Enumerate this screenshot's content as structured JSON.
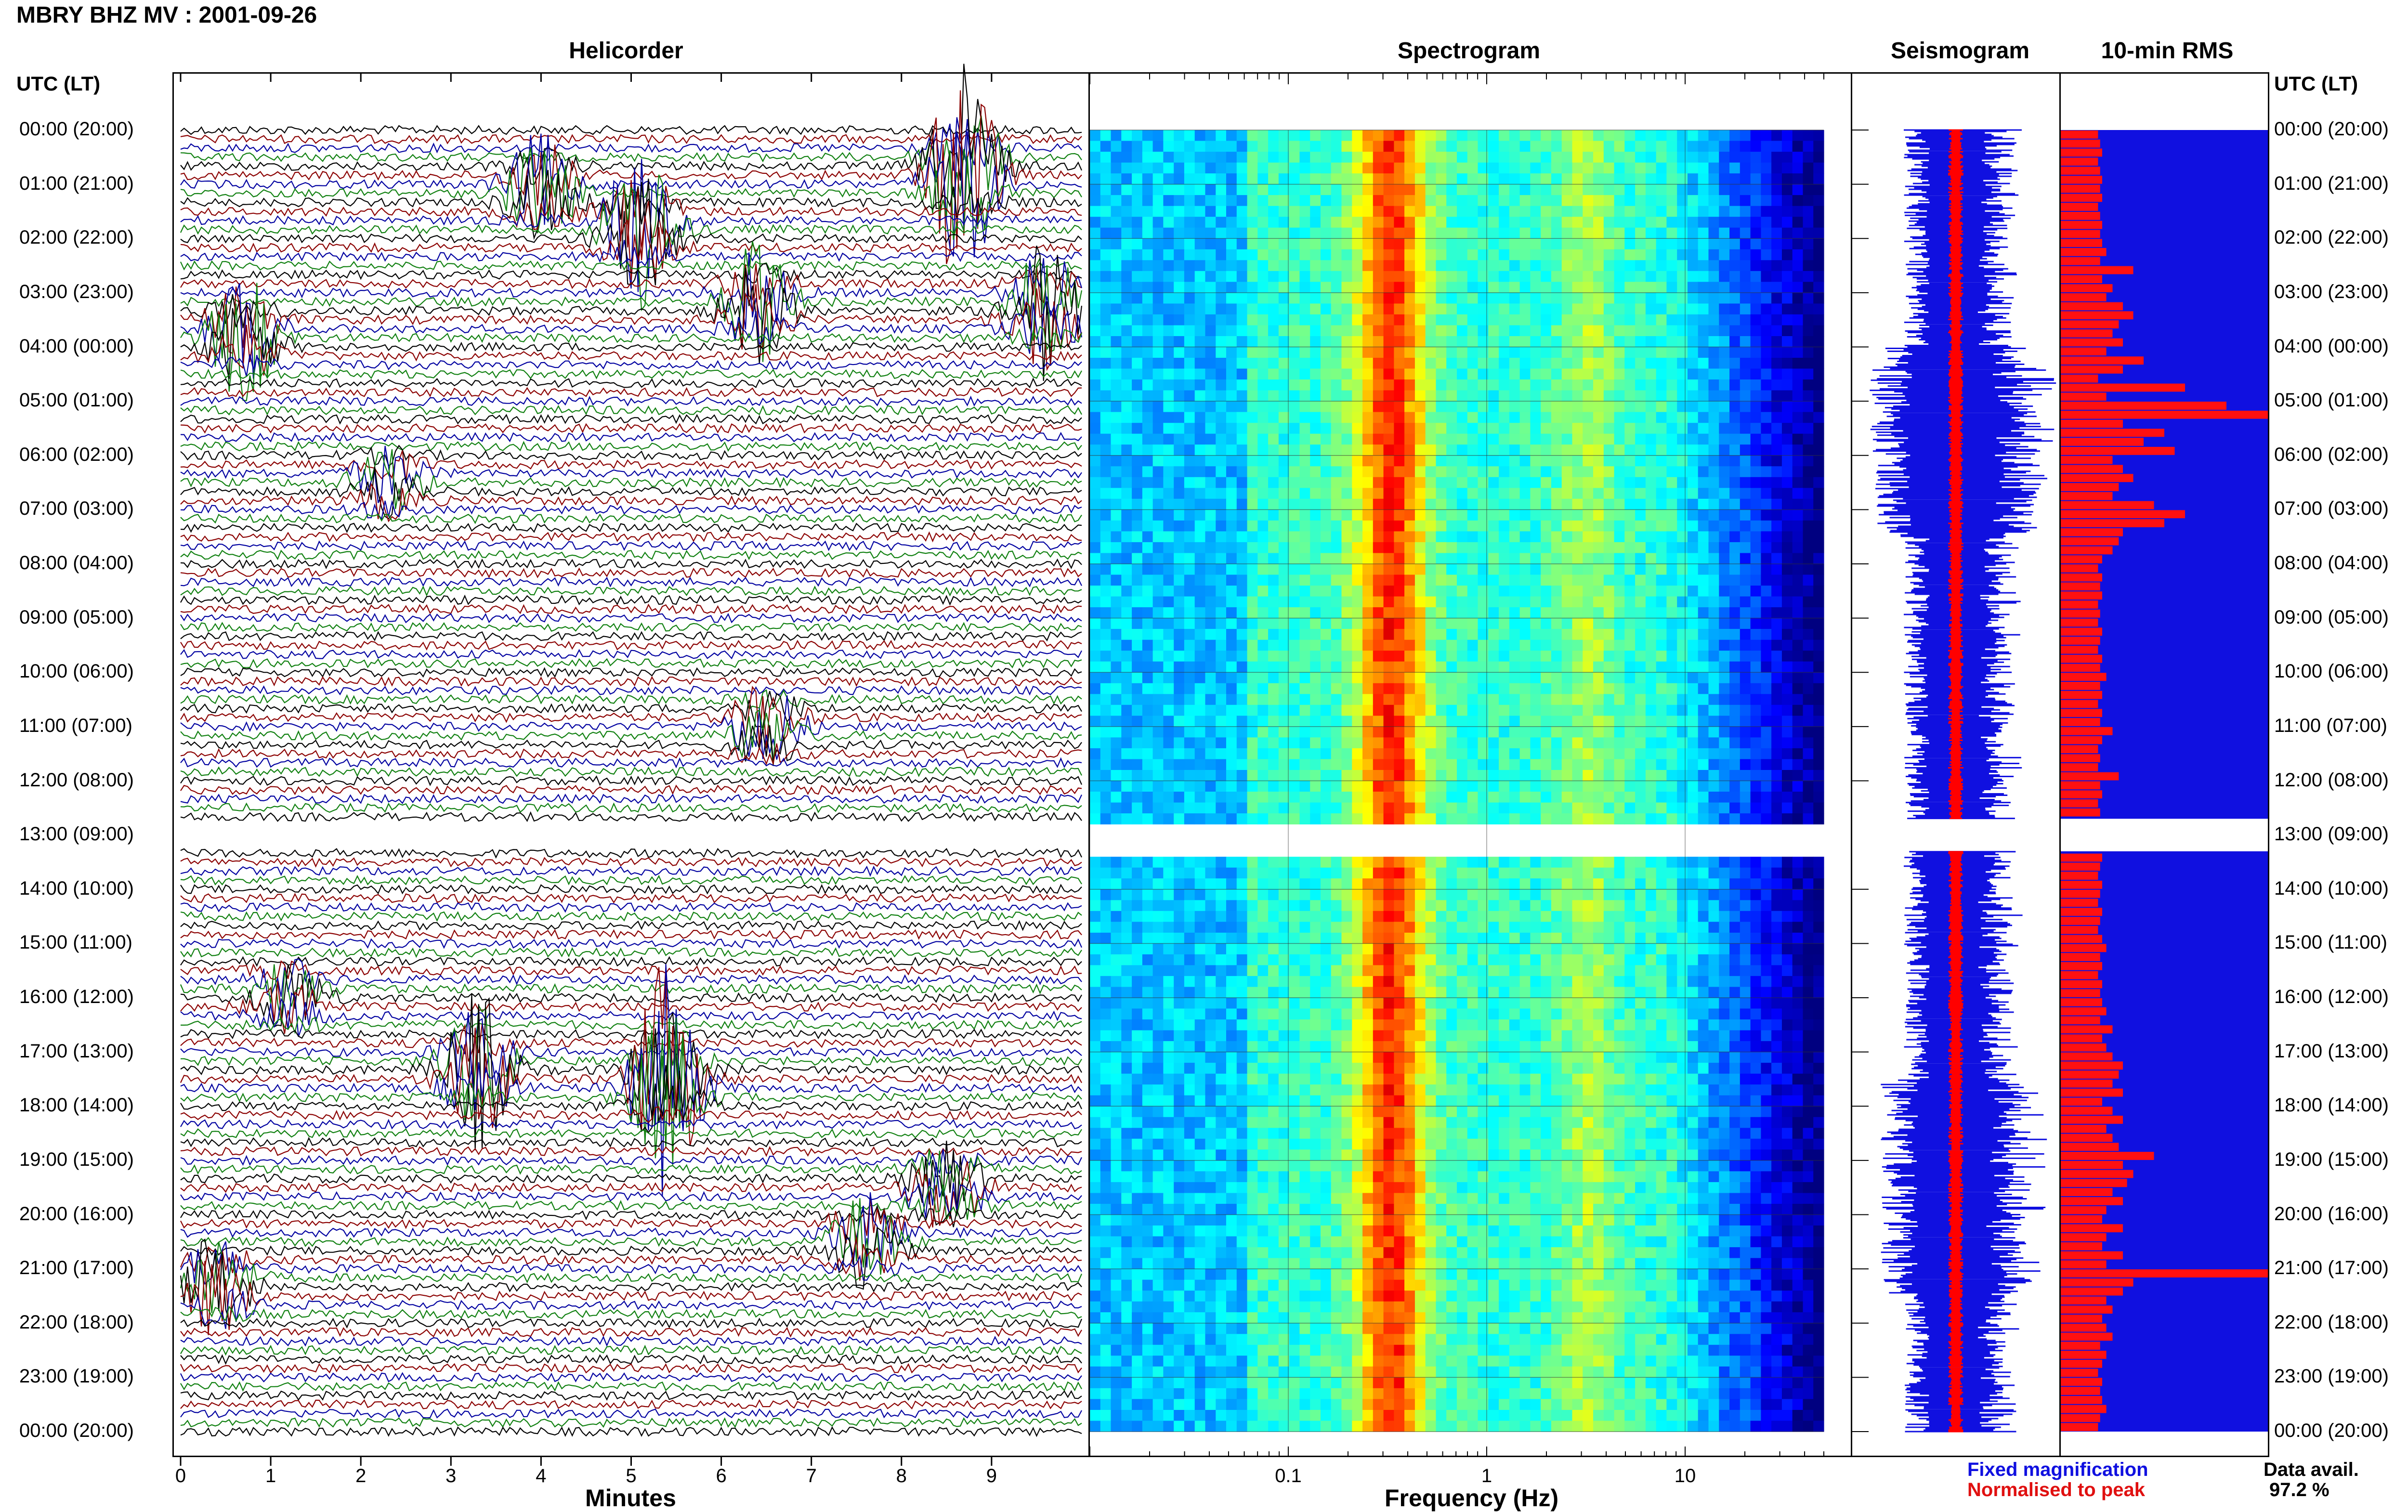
{
  "header": {
    "title": "MBRY BHZ MV : 2001-09-26",
    "panels": [
      "Helicorder",
      "Spectrogram",
      "Seismogram",
      "10-min RMS"
    ],
    "utc_label": "UTC (LT)"
  },
  "footer": {
    "helicorder_xlabel": "Minutes",
    "spectrogram_xlabel": "Frequency (Hz)",
    "legend_fixed": "Fixed magnification",
    "legend_normalised": "Normalised to peak",
    "data_avail_label": "Data avail.",
    "data_avail_value": "97.2 %"
  },
  "colors": {
    "trace_black": "#000000",
    "trace_red": "#8b0000",
    "trace_blue": "#0000a0",
    "trace_green": "#108010",
    "seismo_fixed": "#1010e0",
    "seismo_norm": "#ff0000",
    "rms_bar": "#ff1010",
    "rms_bg": "#1010e0"
  },
  "chart_data": [
    {
      "type": "line",
      "name": "Helicorder",
      "xlabel": "Minutes",
      "x_ticks": [
        0,
        1,
        2,
        3,
        4,
        5,
        6,
        7,
        8,
        9
      ],
      "xlim": [
        0,
        10
      ],
      "y_tick_labels": [
        "00:00 (20:00)",
        "01:00 (21:00)",
        "02:00 (22:00)",
        "03:00 (23:00)",
        "04:00 (00:00)",
        "05:00 (01:00)",
        "06:00 (02:00)",
        "07:00 (03:00)",
        "08:00 (04:00)",
        "09:00 (05:00)",
        "10:00 (06:00)",
        "11:00 (07:00)",
        "12:00 (08:00)",
        "13:00 (09:00)",
        "14:00 (10:00)",
        "15:00 (11:00)",
        "16:00 (12:00)",
        "17:00 (13:00)",
        "18:00 (14:00)",
        "19:00 (15:00)",
        "20:00 (16:00)",
        "21:00 (17:00)",
        "22:00 (18:00)",
        "23:00 (19:00)",
        "00:00 (20:00)"
      ],
      "trace_color_cycle": [
        "black",
        "red",
        "blue",
        "green"
      ],
      "events": [
        {
          "hour": 0.8,
          "minute": 8.7,
          "strength": 3.0
        },
        {
          "hour": 1.1,
          "minute": 4.0,
          "strength": 1.4
        },
        {
          "hour": 1.8,
          "minute": 5.1,
          "strength": 2.2
        },
        {
          "hour": 3.2,
          "minute": 6.4,
          "strength": 1.5
        },
        {
          "hour": 3.8,
          "minute": 0.7,
          "strength": 1.6
        },
        {
          "hour": 3.3,
          "minute": 9.6,
          "strength": 1.8
        },
        {
          "hour": 6.5,
          "minute": 2.3,
          "strength": 0.9
        },
        {
          "hour": 11.0,
          "minute": 6.5,
          "strength": 1.1
        },
        {
          "hour": 16.0,
          "minute": 1.2,
          "strength": 1.0
        },
        {
          "hour": 17.3,
          "minute": 3.3,
          "strength": 2.0
        },
        {
          "hour": 17.6,
          "minute": 5.4,
          "strength": 3.2
        },
        {
          "hour": 20.5,
          "minute": 7.6,
          "strength": 1.2
        },
        {
          "hour": 21.3,
          "minute": 0.4,
          "strength": 1.3
        },
        {
          "hour": 19.5,
          "minute": 8.5,
          "strength": 1.2
        }
      ],
      "data_gap_hours": [
        12.7,
        13.3
      ]
    },
    {
      "type": "heatmap",
      "name": "Spectrogram",
      "xlabel": "Frequency (Hz)",
      "x_scale": "log",
      "x_ticks": [
        0.1,
        1,
        10
      ],
      "x_tick_labels": [
        "0.1",
        "1",
        "10"
      ],
      "xlim": [
        0.01,
        50
      ],
      "peak_band_hz": [
        0.25,
        0.5
      ],
      "secondary_band_hz": [
        2.5,
        4.0
      ]
    },
    {
      "type": "line",
      "name": "Seismogram",
      "series": [
        "Fixed magnification",
        "Normalised to peak"
      ]
    },
    {
      "type": "bar",
      "name": "10-min RMS",
      "interval_minutes": 10,
      "values": [
        0.18,
        0.19,
        0.2,
        0.18,
        0.19,
        0.2,
        0.19,
        0.2,
        0.18,
        0.19,
        0.2,
        0.19,
        0.2,
        0.22,
        0.19,
        0.35,
        0.2,
        0.25,
        0.22,
        0.3,
        0.35,
        0.28,
        0.25,
        0.3,
        0.22,
        0.4,
        0.3,
        0.18,
        0.6,
        0.22,
        0.8,
        1.0,
        0.3,
        0.5,
        0.4,
        0.55,
        0.25,
        0.3,
        0.35,
        0.28,
        0.25,
        0.45,
        0.6,
        0.5,
        0.3,
        0.28,
        0.25,
        0.2,
        0.18,
        0.2,
        0.19,
        0.2,
        0.18,
        0.19,
        0.18,
        0.2,
        0.19,
        0.18,
        0.2,
        0.19,
        0.22,
        0.19,
        0.2,
        0.18,
        0.2,
        0.19,
        0.25,
        0.2,
        0.18,
        0.19,
        0.18,
        0.28,
        0.19,
        0.2,
        0.18,
        0.19,
        0.0,
        0.0,
        0.0,
        0.0,
        0.2,
        0.19,
        0.18,
        0.2,
        0.19,
        0.18,
        0.2,
        0.19,
        0.18,
        0.2,
        0.22,
        0.19,
        0.2,
        0.18,
        0.2,
        0.19,
        0.2,
        0.22,
        0.19,
        0.25,
        0.2,
        0.22,
        0.25,
        0.3,
        0.28,
        0.25,
        0.3,
        0.2,
        0.25,
        0.3,
        0.22,
        0.25,
        0.28,
        0.45,
        0.3,
        0.35,
        0.32,
        0.25,
        0.3,
        0.22,
        0.2,
        0.3,
        0.22,
        0.2,
        0.3,
        0.22,
        1.0,
        0.35,
        0.3,
        0.22,
        0.25,
        0.2,
        0.22,
        0.25,
        0.19,
        0.22,
        0.2,
        0.18,
        0.2,
        0.19,
        0.2,
        0.22,
        0.19,
        0.18
      ],
      "ylim_hours": [
        0,
        24
      ]
    }
  ]
}
